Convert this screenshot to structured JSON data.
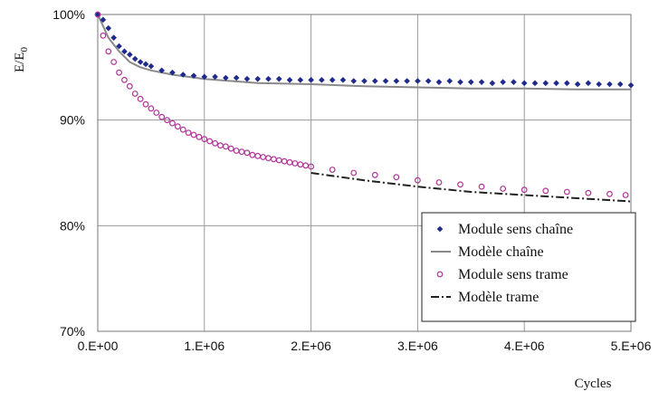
{
  "chart_data": {
    "type": "scatter",
    "xlabel": "Cycles",
    "ylabel": "E/E0",
    "ylabel_main": "E/E",
    "ylabel_sub": "0",
    "xlim": [
      0,
      5000000
    ],
    "ylim": [
      0.7,
      1.0
    ],
    "xticks": [
      0,
      1000000,
      2000000,
      3000000,
      4000000,
      5000000
    ],
    "xtick_labels": [
      "0.E+00",
      "1.E+06",
      "2.E+06",
      "3.E+06",
      "4.E+06",
      "5.E+06"
    ],
    "yticks": [
      0.7,
      0.8,
      0.9,
      1.0
    ],
    "ytick_labels": [
      "70%",
      "80%",
      "90%",
      "100%"
    ],
    "grid": true,
    "legend_position": "bottom-right",
    "series": [
      {
        "name": "Module sens chaîne",
        "kind": "points",
        "marker": "diamond",
        "color": "#1f2a8c",
        "x": [
          0,
          50000,
          100000,
          150000,
          200000,
          250000,
          300000,
          350000,
          400000,
          450000,
          500000,
          600000,
          700000,
          800000,
          900000,
          1000000,
          1100000,
          1200000,
          1300000,
          1400000,
          1500000,
          1600000,
          1700000,
          1800000,
          1900000,
          2000000,
          2100000,
          2200000,
          2300000,
          2400000,
          2500000,
          2600000,
          2700000,
          2800000,
          2900000,
          3000000,
          3100000,
          3200000,
          3300000,
          3400000,
          3500000,
          3600000,
          3700000,
          3800000,
          3900000,
          4000000,
          4100000,
          4200000,
          4300000,
          4400000,
          4500000,
          4600000,
          4700000,
          4800000,
          4900000,
          5000000
        ],
        "y": [
          1.0,
          0.995,
          0.987,
          0.978,
          0.97,
          0.965,
          0.962,
          0.958,
          0.955,
          0.953,
          0.951,
          0.947,
          0.945,
          0.943,
          0.942,
          0.941,
          0.941,
          0.94,
          0.94,
          0.939,
          0.939,
          0.939,
          0.939,
          0.938,
          0.938,
          0.938,
          0.938,
          0.938,
          0.938,
          0.937,
          0.937,
          0.937,
          0.937,
          0.937,
          0.937,
          0.937,
          0.937,
          0.936,
          0.937,
          0.936,
          0.936,
          0.936,
          0.935,
          0.936,
          0.936,
          0.935,
          0.935,
          0.935,
          0.935,
          0.935,
          0.934,
          0.935,
          0.934,
          0.934,
          0.934,
          0.933
        ]
      },
      {
        "name": "Modèle chaîne",
        "kind": "line",
        "dash": "solid",
        "color": "#8a8a8a",
        "x": [
          0,
          100000,
          200000,
          300000,
          400000,
          500000,
          700000,
          1000000,
          1500000,
          2000000,
          2500000,
          3000000,
          3500000,
          4000000,
          4500000,
          5000000
        ],
        "y": [
          1.0,
          0.978,
          0.965,
          0.955,
          0.95,
          0.947,
          0.943,
          0.939,
          0.935,
          0.934,
          0.932,
          0.931,
          0.93,
          0.93,
          0.929,
          0.929
        ]
      },
      {
        "name": "Module sens trame",
        "kind": "points",
        "marker": "circle",
        "color": "#b0359a",
        "x": [
          0,
          50000,
          100000,
          150000,
          200000,
          250000,
          300000,
          350000,
          400000,
          450000,
          500000,
          550000,
          600000,
          650000,
          700000,
          750000,
          800000,
          850000,
          900000,
          950000,
          1000000,
          1050000,
          1100000,
          1150000,
          1200000,
          1250000,
          1300000,
          1350000,
          1400000,
          1450000,
          1500000,
          1550000,
          1600000,
          1650000,
          1700000,
          1750000,
          1800000,
          1850000,
          1900000,
          1950000,
          2000000,
          2200000,
          2400000,
          2600000,
          2800000,
          3000000,
          3200000,
          3400000,
          3600000,
          3800000,
          4000000,
          4200000,
          4400000,
          4600000,
          4800000,
          4950000
        ],
        "y": [
          1.0,
          0.98,
          0.965,
          0.955,
          0.945,
          0.938,
          0.932,
          0.925,
          0.92,
          0.915,
          0.911,
          0.907,
          0.903,
          0.9,
          0.897,
          0.894,
          0.891,
          0.888,
          0.886,
          0.884,
          0.882,
          0.88,
          0.878,
          0.876,
          0.875,
          0.873,
          0.871,
          0.87,
          0.869,
          0.867,
          0.866,
          0.865,
          0.864,
          0.863,
          0.862,
          0.861,
          0.86,
          0.859,
          0.858,
          0.857,
          0.856,
          0.853,
          0.85,
          0.848,
          0.846,
          0.843,
          0.841,
          0.839,
          0.837,
          0.835,
          0.834,
          0.833,
          0.832,
          0.831,
          0.83,
          0.829
        ]
      },
      {
        "name": "Modèle trame",
        "kind": "line",
        "dash": "dashdot",
        "color": "#222222",
        "x": [
          2000000,
          2500000,
          3000000,
          3500000,
          4000000,
          4500000,
          5000000
        ],
        "y": [
          0.85,
          0.843,
          0.837,
          0.832,
          0.829,
          0.826,
          0.823
        ]
      }
    ]
  }
}
